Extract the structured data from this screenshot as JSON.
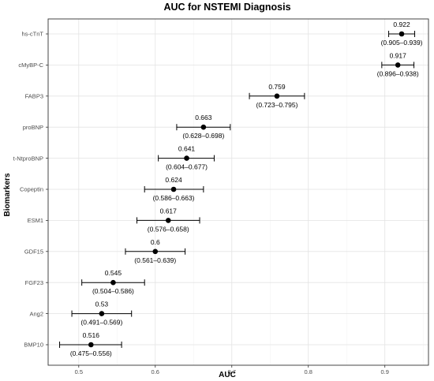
{
  "chart_data": {
    "type": "scatter",
    "title": "AUC for NSTEMI Diagnosis",
    "xlabel": "AUC",
    "ylabel": "Biomarkers",
    "xlim": [
      0.46,
      0.957
    ],
    "x_ticks": [
      0.5,
      0.6,
      0.7,
      0.8,
      0.9
    ],
    "x_tick_labels": [
      "0.5",
      "0.6",
      "0.7",
      "0.8",
      "0.9"
    ],
    "grid": true,
    "legend": "none",
    "points": [
      {
        "label": "hs-cTnT",
        "value": 0.922,
        "lower": 0.905,
        "upper": 0.939,
        "value_text": "0.922",
        "ci_text": "(0.905–0.939)"
      },
      {
        "label": "cMyBP-C",
        "value": 0.917,
        "lower": 0.896,
        "upper": 0.938,
        "value_text": "0.917",
        "ci_text": "(0.896–0.938)"
      },
      {
        "label": "FABP3",
        "value": 0.759,
        "lower": 0.723,
        "upper": 0.795,
        "value_text": "0.759",
        "ci_text": "(0.723–0.795)"
      },
      {
        "label": "proBNP",
        "value": 0.663,
        "lower": 0.628,
        "upper": 0.698,
        "value_text": "0.663",
        "ci_text": "(0.628–0.698)"
      },
      {
        "label": "t-NtproBNP",
        "value": 0.641,
        "lower": 0.604,
        "upper": 0.677,
        "value_text": "0.641",
        "ci_text": "(0.604–0.677)"
      },
      {
        "label": "Copeptin",
        "value": 0.624,
        "lower": 0.586,
        "upper": 0.663,
        "value_text": "0.624",
        "ci_text": "(0.586–0.663)"
      },
      {
        "label": "ESM1",
        "value": 0.617,
        "lower": 0.576,
        "upper": 0.658,
        "value_text": "0.617",
        "ci_text": "(0.576–0.658)"
      },
      {
        "label": "GDF15",
        "value": 0.6,
        "lower": 0.561,
        "upper": 0.639,
        "value_text": "0.6",
        "ci_text": "(0.561–0.639)"
      },
      {
        "label": "FGF23",
        "value": 0.545,
        "lower": 0.504,
        "upper": 0.586,
        "value_text": "0.545",
        "ci_text": "(0.504–0.586)"
      },
      {
        "label": "Ang2",
        "value": 0.53,
        "lower": 0.491,
        "upper": 0.569,
        "value_text": "0.53",
        "ci_text": "(0.491–0.569)"
      },
      {
        "label": "BMP10",
        "value": 0.516,
        "lower": 0.475,
        "upper": 0.556,
        "value_text": "0.516",
        "ci_text": "(0.475–0.556)"
      }
    ],
    "colors": {
      "point": "#000000",
      "errorbar": "#000000",
      "grid": "#e3e3e3",
      "panel_border": "#333333",
      "tick_text": "#4d4d4d",
      "background": "#ffffff"
    }
  }
}
